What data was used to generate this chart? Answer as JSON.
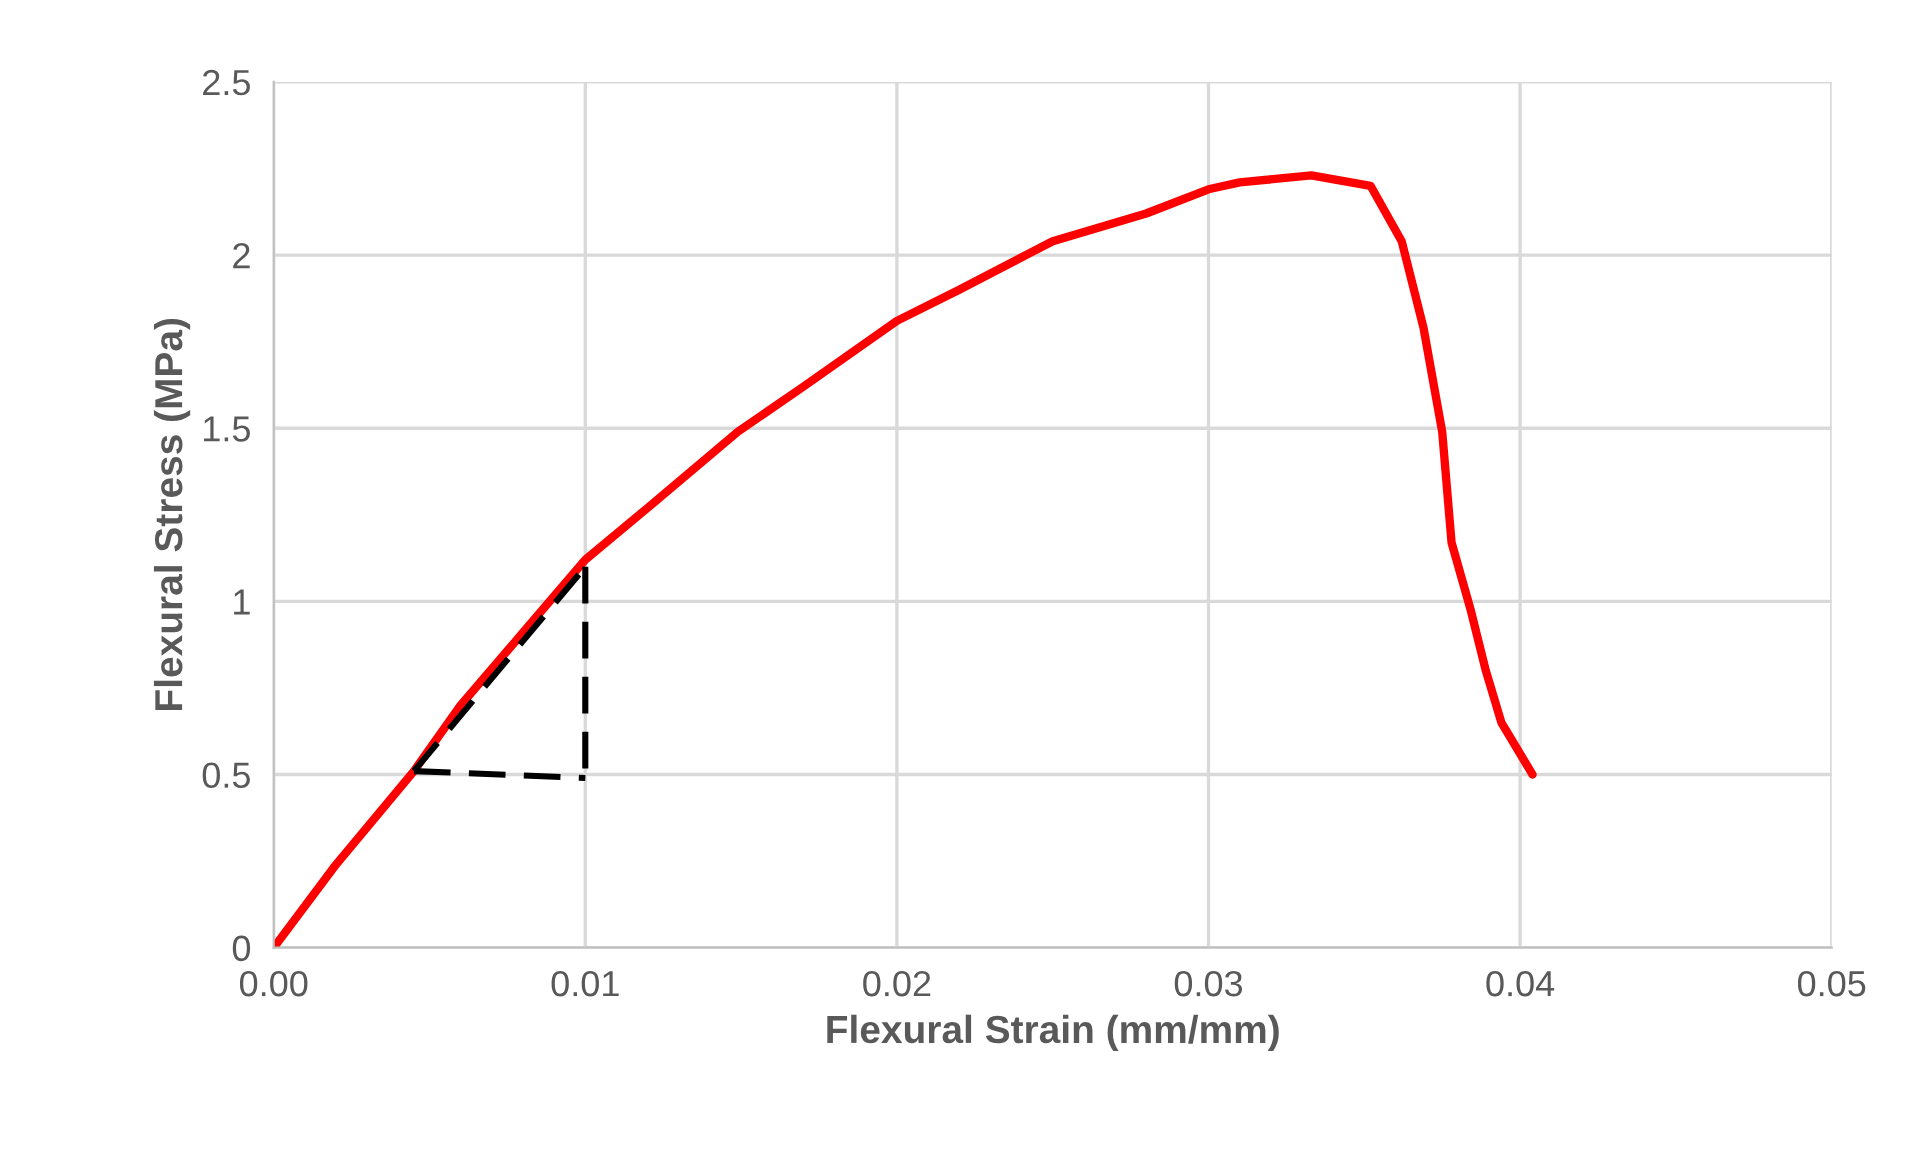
{
  "chart_data": {
    "type": "line",
    "xlabel": "Flexural Strain (mm/mm)",
    "ylabel": "Flexural Stress (MPa)",
    "xlim": [
      0,
      0.05
    ],
    "xticks": [
      {
        "value": 0,
        "label": "0.00"
      },
      {
        "value": 0.01,
        "label": "0.01"
      },
      {
        "value": 0.02,
        "label": "0.02"
      },
      {
        "value": 0.03,
        "label": "0.03"
      },
      {
        "value": 0.04,
        "label": "0.04"
      },
      {
        "value": 0.05,
        "label": "0.05"
      }
    ],
    "ylim": [
      0,
      2.5
    ],
    "yticks": [
      0,
      0.5,
      1,
      1.5,
      2,
      2.5
    ],
    "grid": true,
    "legend": false,
    "series": [
      {
        "color": "#ff0000",
        "line_style": "solid",
        "x": [
          0,
          0.002,
          0.0045,
          0.006,
          0.008,
          0.01,
          0.012,
          0.0149,
          0.017,
          0.02,
          0.022,
          0.025,
          0.028,
          0.03,
          0.031,
          0.0333,
          0.0352,
          0.0362,
          0.0369,
          0.0375,
          0.0378,
          0.0384,
          0.0389,
          0.0394,
          0.0404
        ],
        "values": [
          0,
          0.24,
          0.51,
          0.7,
          0.91,
          1.12,
          1.27,
          1.49,
          1.62,
          1.81,
          1.9,
          2.04,
          2.12,
          2.19,
          2.21,
          2.23,
          2.2,
          2.04,
          1.79,
          1.49,
          1.17,
          0.98,
          0.8,
          0.65,
          0.5
        ]
      },
      {
        "color": "#000000",
        "line_style": "dashed",
        "x": [
          0.0045,
          0.01
        ],
        "values": [
          0.51,
          1.1
        ]
      },
      {
        "color": "#000000",
        "line_style": "dashed",
        "x": [
          0.01,
          0.01
        ],
        "values": [
          1.1,
          0.49
        ]
      },
      {
        "color": "#000000",
        "line_style": "dashed",
        "x": [
          0.0045,
          0.01
        ],
        "values": [
          0.51,
          0.49
        ]
      }
    ]
  }
}
